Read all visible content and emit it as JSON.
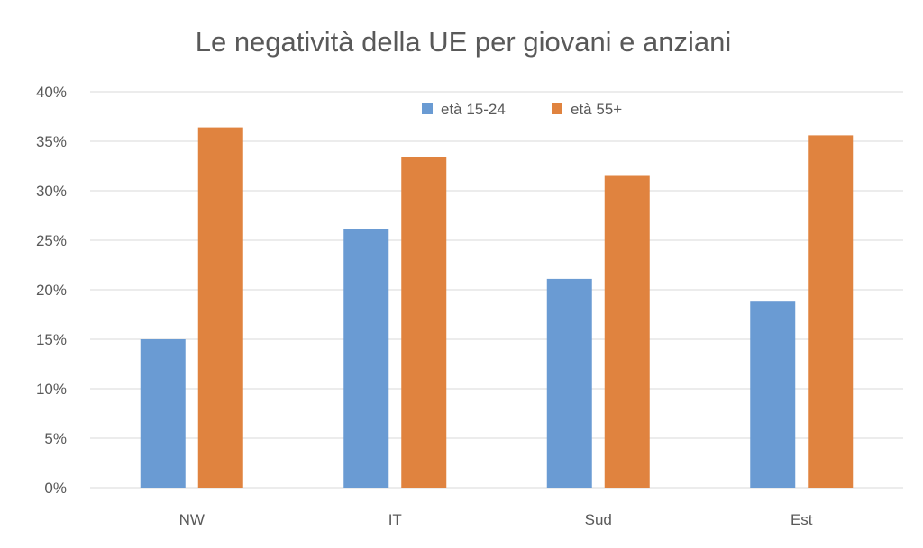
{
  "chart_data": {
    "type": "bar",
    "title": "Le negatività della UE per giovani e anziani",
    "xlabel": "",
    "ylabel": "",
    "categories": [
      "NW",
      "IT",
      "Sud",
      "Est"
    ],
    "series": [
      {
        "name": "età 15-24",
        "color": "#6a9bd3",
        "values": [
          0.15,
          0.261,
          0.211,
          0.188
        ]
      },
      {
        "name": "età 55+",
        "color": "#e0833f",
        "values": [
          0.364,
          0.334,
          0.315,
          0.356
        ]
      }
    ],
    "ylim": [
      0,
      0.4
    ],
    "yticks": [
      0,
      0.05,
      0.1,
      0.15,
      0.2,
      0.25,
      0.3,
      0.35,
      0.4
    ],
    "ytick_labels": [
      "0%",
      "5%",
      "10%",
      "15%",
      "20%",
      "25%",
      "30%",
      "35%",
      "40%"
    ],
    "grid": true,
    "legend_position": "top-center",
    "colors": {
      "grid": "#d9d9d9",
      "text": "#595959"
    }
  }
}
